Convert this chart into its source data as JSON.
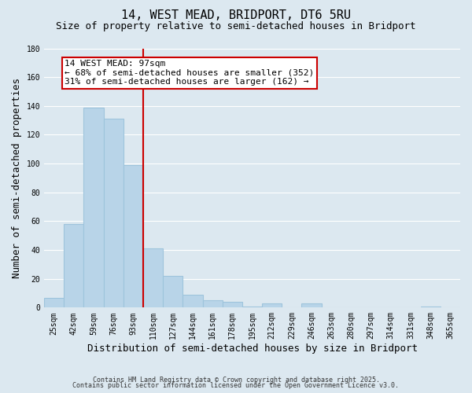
{
  "title": "14, WEST MEAD, BRIDPORT, DT6 5RU",
  "subtitle": "Size of property relative to semi-detached houses in Bridport",
  "xlabel": "Distribution of semi-detached houses by size in Bridport",
  "ylabel": "Number of semi-detached properties",
  "bar_labels": [
    "25sqm",
    "42sqm",
    "59sqm",
    "76sqm",
    "93sqm",
    "110sqm",
    "127sqm",
    "144sqm",
    "161sqm",
    "178sqm",
    "195sqm",
    "212sqm",
    "229sqm",
    "246sqm",
    "263sqm",
    "280sqm",
    "297sqm",
    "314sqm",
    "331sqm",
    "348sqm",
    "365sqm"
  ],
  "bar_values": [
    7,
    58,
    139,
    131,
    99,
    41,
    22,
    9,
    5,
    4,
    1,
    3,
    0,
    3,
    0,
    0,
    0,
    0,
    0,
    1,
    0
  ],
  "bar_color": "#b8d4e8",
  "bar_edge_color": "#9ec4dc",
  "property_line_label": "14 WEST MEAD: 97sqm",
  "annotation_smaller": "← 68% of semi-detached houses are smaller (352)",
  "annotation_larger": "31% of semi-detached houses are larger (162) →",
  "annotation_box_color": "#ffffff",
  "annotation_box_edge": "#cc0000",
  "vline_color": "#cc0000",
  "ylim": [
    0,
    180
  ],
  "yticks": [
    0,
    20,
    40,
    60,
    80,
    100,
    120,
    140,
    160,
    180
  ],
  "grid_color": "#ffffff",
  "bg_color": "#dce8f0",
  "plot_bg_color": "#dce8f0",
  "footnote1": "Contains HM Land Registry data © Crown copyright and database right 2025.",
  "footnote2": "Contains public sector information licensed under the Open Government Licence v3.0.",
  "title_fontsize": 11,
  "subtitle_fontsize": 9,
  "label_fontsize": 9,
  "tick_fontsize": 7,
  "annot_fontsize": 8
}
